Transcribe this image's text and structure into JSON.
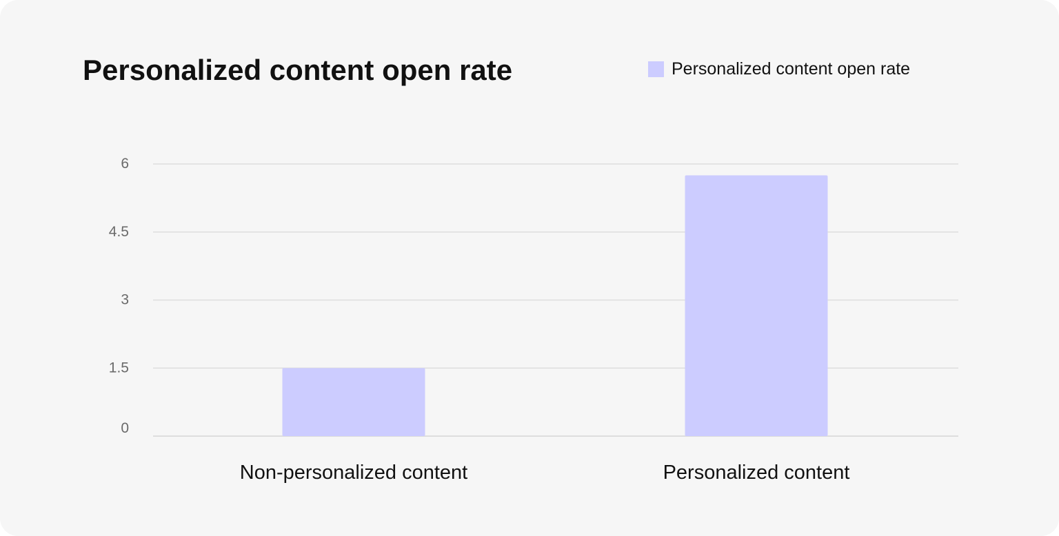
{
  "chart_data": {
    "type": "bar",
    "title": "Personalized content open rate",
    "categories": [
      "Non-personalized content",
      "Personalized content"
    ],
    "series": [
      {
        "name": "Personalized content open rate",
        "values": [
          1.5,
          5.75
        ],
        "color": "#ccccff"
      }
    ],
    "ylim": [
      0,
      6
    ],
    "yticks": [
      0,
      1.5,
      3,
      4.5,
      6
    ],
    "ytick_labels": [
      "0",
      "1.5",
      "3",
      "4.5",
      "6"
    ],
    "xlabel": "",
    "ylabel": "",
    "grid": true,
    "legend_position": "top-right"
  },
  "colors": {
    "background": "#f6f6f6",
    "grid": "#dddddd",
    "text": "#111111",
    "tick_text": "#6a6a6a"
  }
}
